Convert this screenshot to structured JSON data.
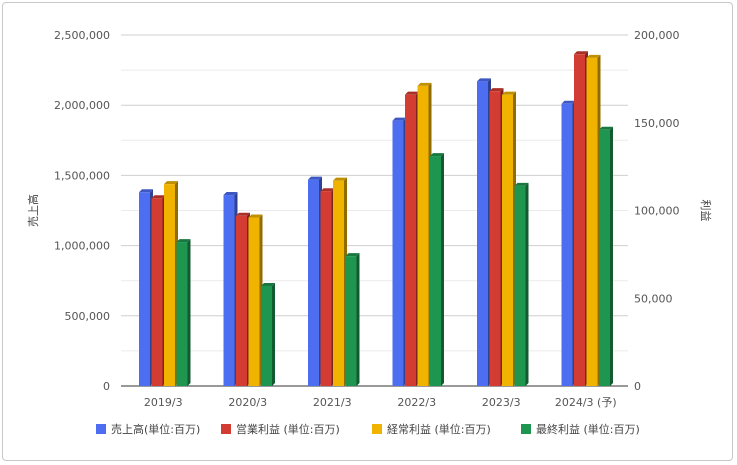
{
  "chart_data": {
    "type": "bar",
    "categories": [
      "2019/3",
      "2020/3",
      "2021/3",
      "2022/3",
      "2023/3",
      "2024/3 (予)"
    ],
    "series": [
      {
        "name": "売上高(単位:百万)",
        "axis": "left",
        "color": "#4e6ef2",
        "values": [
          1380000,
          1360000,
          1470000,
          1890000,
          2170000,
          2010000
        ]
      },
      {
        "name": "営業利益 (単位:百万)",
        "axis": "right",
        "color": "#d23c32",
        "values": [
          107000,
          97000,
          111000,
          166000,
          168000,
          189000
        ]
      },
      {
        "name": "経常利益 (単位:百万)",
        "axis": "right",
        "color": "#f0b400",
        "values": [
          115000,
          96000,
          117000,
          171000,
          166000,
          187000
        ]
      },
      {
        "name": "最終利益 (単位:百万)",
        "axis": "right",
        "color": "#1e9650",
        "values": [
          82000,
          57000,
          74000,
          131000,
          114000,
          146000
        ]
      }
    ],
    "y_left": {
      "label": "売上高",
      "ylim": [
        0,
        2500000
      ],
      "ticks": [
        "0",
        "500,000",
        "1,000,000",
        "1,500,000",
        "2,000,000",
        "2,500,000"
      ]
    },
    "y_right": {
      "label": "利益",
      "ylim": [
        0,
        200000
      ],
      "ticks": [
        "0",
        "50,000",
        "100,000",
        "150,000",
        "200,000"
      ]
    },
    "grid": true,
    "legend_position": "bottom"
  }
}
